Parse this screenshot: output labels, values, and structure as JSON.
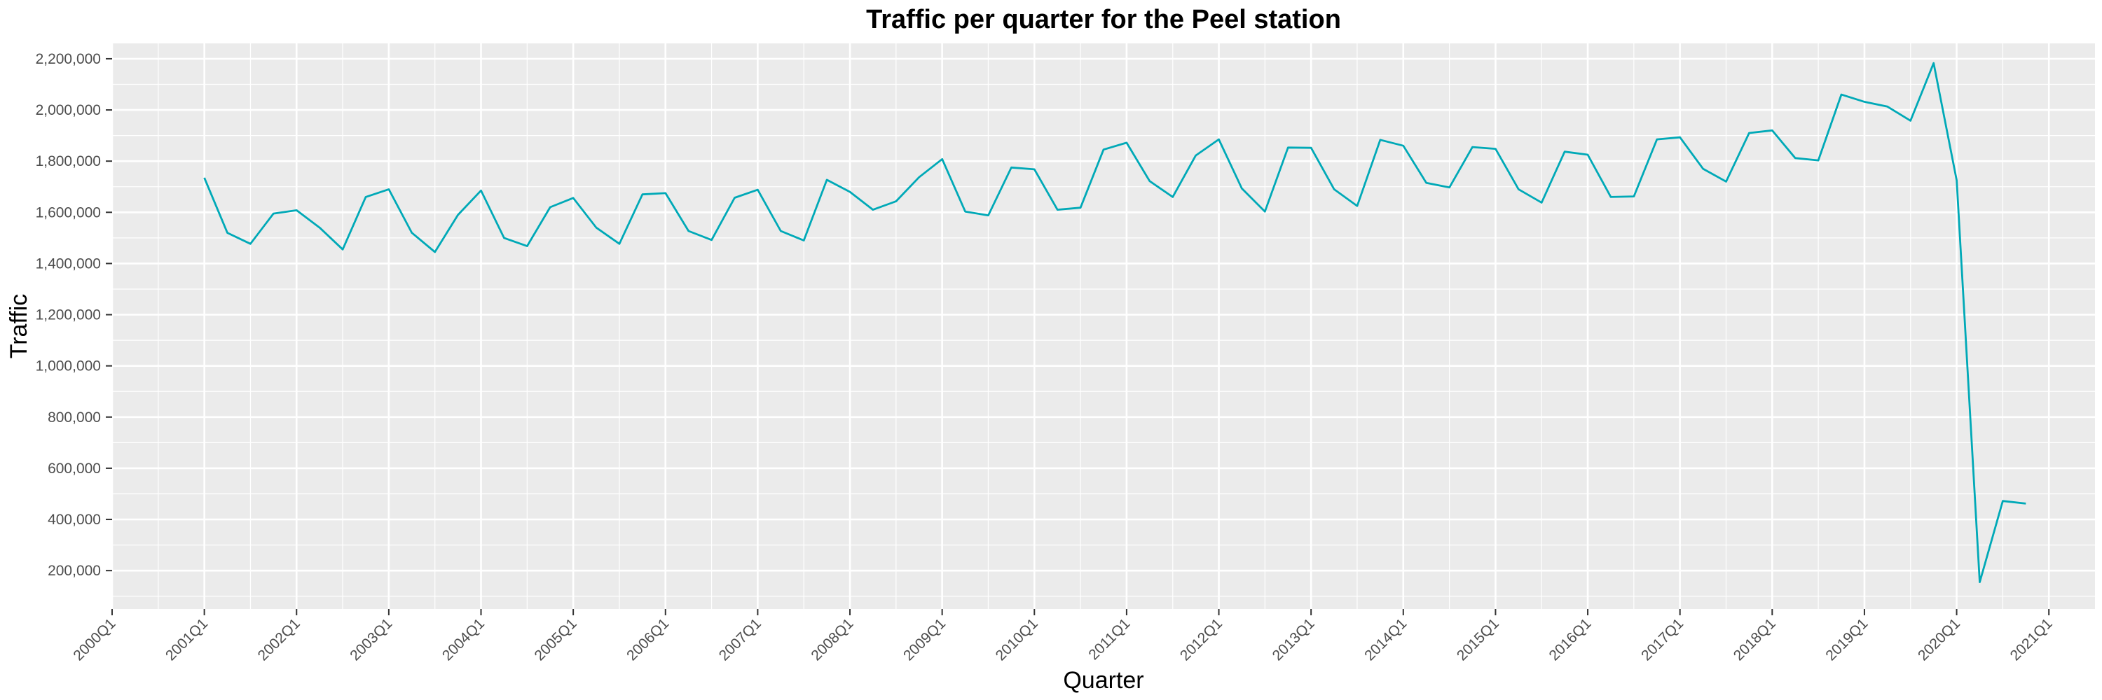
{
  "chart_data": {
    "type": "line",
    "title": "Traffic per quarter for the Peel station",
    "xlabel": "Quarter",
    "ylabel": "Traffic",
    "line_color": "#00A9B7",
    "panel_color": "#EBEBEB",
    "grid": true,
    "legend": "none",
    "xlim": [
      "2000Q1",
      "2021Q3"
    ],
    "ylim": [
      50000,
      2260000
    ],
    "x_ticks": [
      "2000Q1",
      "2001Q1",
      "2002Q1",
      "2003Q1",
      "2004Q1",
      "2005Q1",
      "2006Q1",
      "2007Q1",
      "2008Q1",
      "2009Q1",
      "2010Q1",
      "2011Q1",
      "2012Q1",
      "2013Q1",
      "2014Q1",
      "2015Q1",
      "2016Q1",
      "2017Q1",
      "2018Q1",
      "2019Q1",
      "2020Q1",
      "2021Q1"
    ],
    "y_ticks": [
      200000,
      400000,
      600000,
      800000,
      1000000,
      1200000,
      1400000,
      1600000,
      1800000,
      2000000,
      2200000
    ],
    "y_tick_labels": [
      "200,000",
      "400,000",
      "600,000",
      "800,000",
      "1,000,000",
      "1,200,000",
      "1,400,000",
      "1,600,000",
      "1,800,000",
      "2,000,000",
      "2,200,000"
    ],
    "series": [
      {
        "x": [
          "2001Q1",
          "2001Q2",
          "2001Q3",
          "2001Q4",
          "2002Q1",
          "2002Q2",
          "2002Q3",
          "2002Q4",
          "2003Q1",
          "2003Q2",
          "2003Q3",
          "2003Q4",
          "2004Q1",
          "2004Q2",
          "2004Q3",
          "2004Q4",
          "2005Q1",
          "2005Q2",
          "2005Q3",
          "2005Q4",
          "2006Q1",
          "2006Q2",
          "2006Q3",
          "2006Q4",
          "2007Q1",
          "2007Q2",
          "2007Q3",
          "2007Q4",
          "2008Q1",
          "2008Q2",
          "2008Q3",
          "2008Q4",
          "2009Q1",
          "2009Q2",
          "2009Q3",
          "2009Q4",
          "2010Q1",
          "2010Q2",
          "2010Q3",
          "2010Q4",
          "2011Q1",
          "2011Q2",
          "2011Q3",
          "2011Q4",
          "2012Q1",
          "2012Q2",
          "2012Q3",
          "2012Q4",
          "2013Q1",
          "2013Q2",
          "2013Q3",
          "2013Q4",
          "2014Q1",
          "2014Q2",
          "2014Q3",
          "2014Q4",
          "2015Q1",
          "2015Q2",
          "2015Q3",
          "2015Q4",
          "2016Q1",
          "2016Q2",
          "2016Q3",
          "2016Q4",
          "2017Q1",
          "2017Q2",
          "2017Q3",
          "2017Q4",
          "2018Q1",
          "2018Q2",
          "2018Q3",
          "2018Q4",
          "2019Q1",
          "2019Q2",
          "2019Q3",
          "2019Q4",
          "2020Q1",
          "2020Q2",
          "2020Q3",
          "2020Q4"
        ],
        "values": [
          1735000,
          1520000,
          1477000,
          1595000,
          1608000,
          1540000,
          1455000,
          1660000,
          1690000,
          1520000,
          1445000,
          1590000,
          1685000,
          1500000,
          1468000,
          1620000,
          1656000,
          1540000,
          1477000,
          1670000,
          1675000,
          1527000,
          1492000,
          1657000,
          1688000,
          1527000,
          1490000,
          1727000,
          1680000,
          1610000,
          1643000,
          1737000,
          1808000,
          1603000,
          1588000,
          1775000,
          1768000,
          1610000,
          1618000,
          1845000,
          1872000,
          1722000,
          1660000,
          1822000,
          1885000,
          1693000,
          1603000,
          1853000,
          1852000,
          1690000,
          1625000,
          1883000,
          1860000,
          1715000,
          1697000,
          1855000,
          1848000,
          1690000,
          1638000,
          1837000,
          1825000,
          1660000,
          1662000,
          1885000,
          1893000,
          1770000,
          1720000,
          1910000,
          1920000,
          1812000,
          1803000,
          2060000,
          2032000,
          2013000,
          1958000,
          2183000,
          1725000,
          155000,
          472000,
          462000
        ]
      }
    ]
  }
}
